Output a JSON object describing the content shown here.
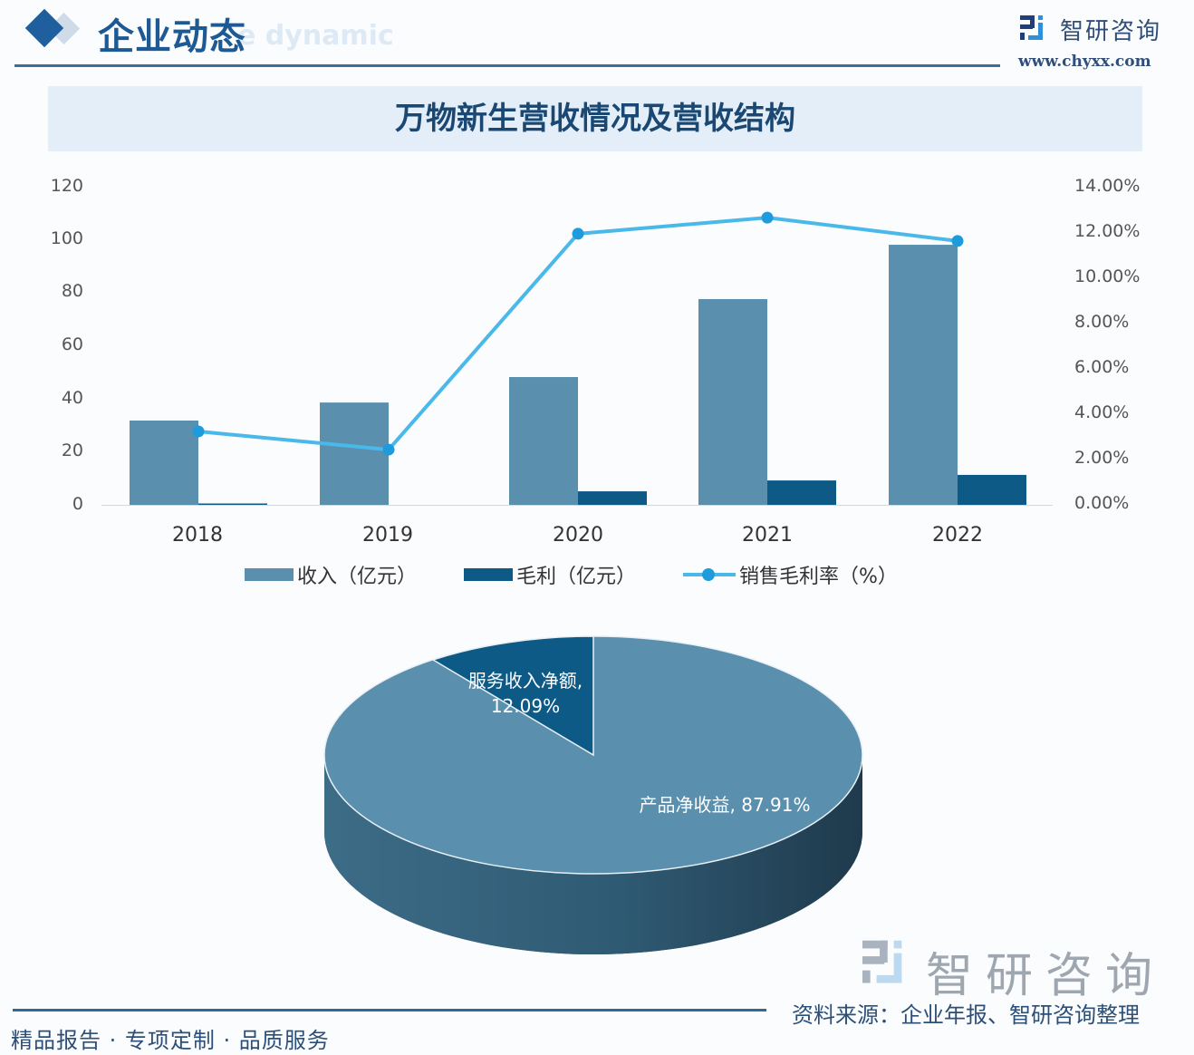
{
  "header": {
    "section_title": "企业动态",
    "section_subtitle_en": "e dynamic",
    "brand_name": "智研咨询",
    "brand_url": "www.chyxx.com"
  },
  "banner": {
    "title": "万物新生营收情况及营收结构"
  },
  "footer": {
    "tagline": "精品报告 · 专项定制 · 品质服务",
    "source": "资料来源：企业年报、智研咨询整理",
    "brand_watermark": "智研咨询"
  },
  "colors": {
    "revenue_bar": "#5b8fae",
    "gross_profit_bar": "#0e5a86",
    "margin_line": "#4ab9ea",
    "margin_marker": "#1e9bdc",
    "pie_product": "#5b8fae",
    "pie_service": "#0e5a86",
    "title_blue": "#1d5a94"
  },
  "chart_data": [
    {
      "type": "bar",
      "title": "万物新生营收情况",
      "categories": [
        "2018",
        "2019",
        "2020",
        "2021",
        "2022"
      ],
      "series": [
        {
          "name": "收入（亿元）",
          "type": "bar",
          "axis": "left",
          "values": [
            31.8,
            38.6,
            48.2,
            77.6,
            98.1
          ]
        },
        {
          "name": "毛利（亿元）",
          "type": "bar",
          "axis": "left",
          "values": [
            0.5,
            0.0,
            5.1,
            9.2,
            11.3
          ]
        },
        {
          "name": "销售毛利率（%）",
          "type": "line",
          "axis": "right",
          "values": [
            3.23,
            2.43,
            11.93,
            12.64,
            11.61
          ]
        }
      ],
      "xlabel": "",
      "ylabel_left": "",
      "ylabel_right": "",
      "ylim_left": [
        0,
        120
      ],
      "ylim_right": [
        0,
        14
      ],
      "yticks_left": [
        "0",
        "20",
        "40",
        "60",
        "80",
        "100",
        "120"
      ],
      "yticks_right": [
        "0.00%",
        "2.00%",
        "4.00%",
        "6.00%",
        "8.00%",
        "10.00%",
        "12.00%",
        "14.00%"
      ],
      "grid": false,
      "legend_position": "bottom",
      "legend": [
        "收入（亿元）",
        "毛利（亿元）",
        "销售毛利率（%）"
      ]
    },
    {
      "type": "pie",
      "title": "万物新生营收结构",
      "categories": [
        "产品净收益",
        "服务收入净额"
      ],
      "values": [
        87.91,
        12.09
      ],
      "labels": [
        "产品净收益, 87.91%",
        "服务收入净额, 12.09%"
      ],
      "style": "3d"
    }
  ],
  "axis": {
    "left_ticks": [
      "120",
      "100",
      "80",
      "60",
      "40",
      "20",
      "0"
    ],
    "right_ticks": [
      "14.00%",
      "12.00%",
      "10.00%",
      "8.00%",
      "6.00%",
      "4.00%",
      "2.00%",
      "0.00%"
    ],
    "x_ticks": [
      "2018",
      "2019",
      "2020",
      "2021",
      "2022"
    ]
  },
  "legend": {
    "revenue": "收入（亿元）",
    "gross_profit": "毛利（亿元）",
    "margin": "销售毛利率（%）"
  },
  "pie": {
    "service_label_name": "服务收入净额,",
    "service_label_value": "12.09%",
    "product_label": "产品净收益, 87.91%"
  }
}
